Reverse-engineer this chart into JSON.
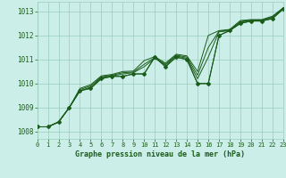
{
  "title": "Graphe pression niveau de la mer (hPa)",
  "background_color": "#cceee8",
  "grid_color": "#99ccbb",
  "line_color": "#1a5c1a",
  "x_ticks": [
    0,
    1,
    2,
    3,
    4,
    5,
    6,
    7,
    8,
    9,
    10,
    11,
    12,
    13,
    14,
    15,
    16,
    17,
    18,
    19,
    20,
    21,
    22,
    23
  ],
  "y_ticks": [
    1008,
    1009,
    1010,
    1011,
    1012,
    1013
  ],
  "ylim": [
    1007.7,
    1013.4
  ],
  "xlim": [
    0,
    23
  ],
  "series": [
    [
      1008.2,
      1008.2,
      1008.4,
      1009.0,
      1009.7,
      1009.8,
      1010.2,
      1010.3,
      1010.3,
      1010.4,
      1010.4,
      1011.1,
      1010.7,
      1011.1,
      1011.0,
      1010.0,
      1010.0,
      1012.0,
      1012.2,
      1012.5,
      1012.6,
      1012.6,
      1012.7,
      1013.1
    ],
    [
      1008.2,
      1008.2,
      1008.4,
      1009.0,
      1009.7,
      1009.85,
      1010.25,
      1010.32,
      1010.4,
      1010.45,
      1010.7,
      1011.05,
      1010.77,
      1011.15,
      1011.05,
      1010.2,
      1011.1,
      1012.15,
      1012.2,
      1012.55,
      1012.62,
      1012.62,
      1012.75,
      1013.1
    ],
    [
      1008.2,
      1008.2,
      1008.4,
      1009.0,
      1009.75,
      1009.9,
      1010.28,
      1010.35,
      1010.45,
      1010.48,
      1010.8,
      1011.08,
      1010.8,
      1011.18,
      1011.1,
      1010.35,
      1011.5,
      1012.18,
      1012.22,
      1012.58,
      1012.64,
      1012.64,
      1012.78,
      1013.12
    ],
    [
      1008.2,
      1008.2,
      1008.4,
      1009.0,
      1009.8,
      1009.95,
      1010.32,
      1010.38,
      1010.5,
      1010.52,
      1010.95,
      1011.12,
      1010.85,
      1011.22,
      1011.15,
      1010.5,
      1012.0,
      1012.2,
      1012.25,
      1012.62,
      1012.66,
      1012.66,
      1012.8,
      1013.15
    ]
  ],
  "marker_series": [
    1008.2,
    1008.2,
    1008.4,
    1009.0,
    1009.7,
    1009.8,
    1010.2,
    1010.3,
    1010.3,
    1010.4,
    1010.4,
    1011.1,
    1010.7,
    1011.1,
    1011.0,
    1010.0,
    1010.0,
    1012.0,
    1012.2,
    1012.5,
    1012.6,
    1012.6,
    1012.7,
    1013.1
  ],
  "ylabel_fontsize": 5.5,
  "xlabel_fontsize": 6.0,
  "tick_fontsize": 5.0
}
